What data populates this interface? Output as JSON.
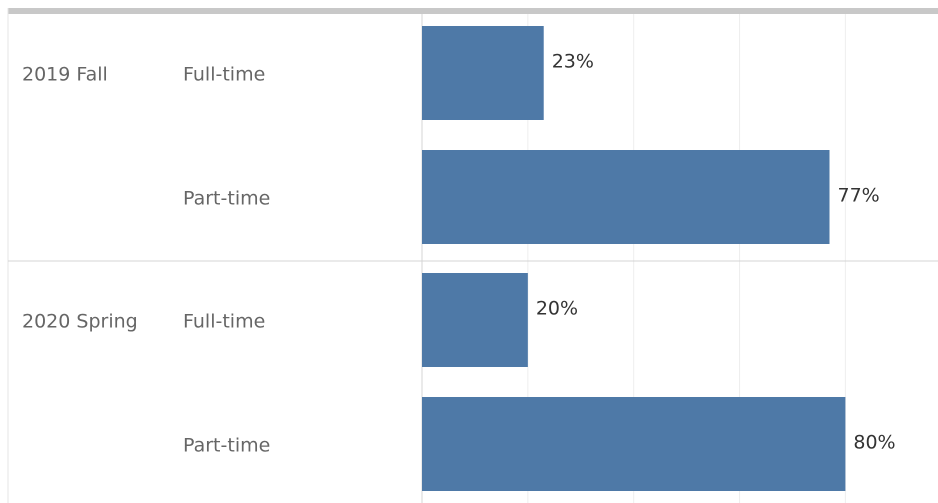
{
  "chart_data": {
    "type": "bar",
    "orientation": "horizontal",
    "color": "#4e79a7",
    "groups": [
      {
        "name": "2019 Fall",
        "categories": [
          "Full-time",
          "Part-time"
        ],
        "values": [
          23,
          77
        ],
        "value_labels": [
          "23%",
          "77%"
        ]
      },
      {
        "name": "2020 Spring",
        "categories": [
          "Full-time",
          "Part-time"
        ],
        "values": [
          20,
          80
        ],
        "value_labels": [
          "20%",
          "80%"
        ]
      }
    ],
    "xlim": [
      0,
      97.5
    ],
    "xticks": [
      0,
      20,
      40,
      60,
      80
    ],
    "grid": true
  }
}
